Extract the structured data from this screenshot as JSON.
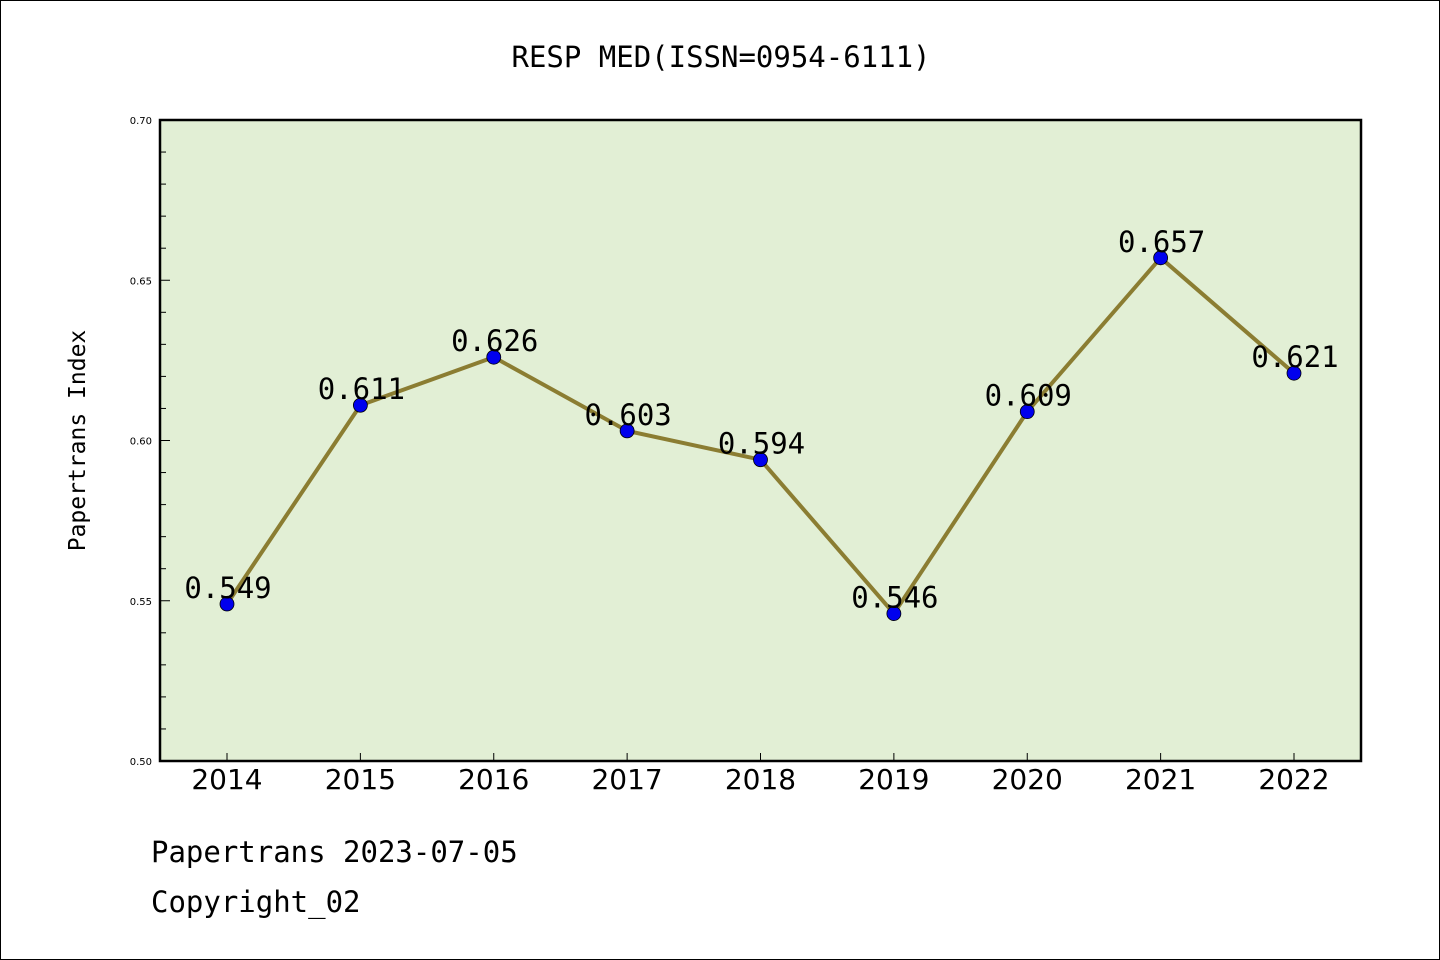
{
  "chart_data": {
    "type": "line",
    "title": "RESP MED(ISSN=0954-6111)",
    "ylabel": "Papertrans Index",
    "xlabel": "",
    "categories": [
      "2014",
      "2015",
      "2016",
      "2017",
      "2018",
      "2019",
      "2020",
      "2021",
      "2022"
    ],
    "series": [
      {
        "values": [
          0.549,
          0.611,
          0.626,
          0.603,
          0.594,
          0.546,
          0.609,
          0.657,
          0.621
        ],
        "labels": [
          "0.549",
          "0.611",
          "0.626",
          "0.603",
          "0.594",
          "0.546",
          "0.609",
          "0.657",
          "0.621"
        ]
      }
    ],
    "ylim": [
      0.5,
      0.7
    ],
    "yticks": [
      "0.50",
      "0.55",
      "0.60",
      "0.65",
      "0.70"
    ],
    "grid": false,
    "colors": {
      "plot_background": "#e2efd5",
      "line": "#8b7d32",
      "marker": "#0000ee"
    }
  },
  "footer": {
    "date_line": "Papertrans 2023-07-05",
    "copyright_line": "Copyright_02"
  }
}
